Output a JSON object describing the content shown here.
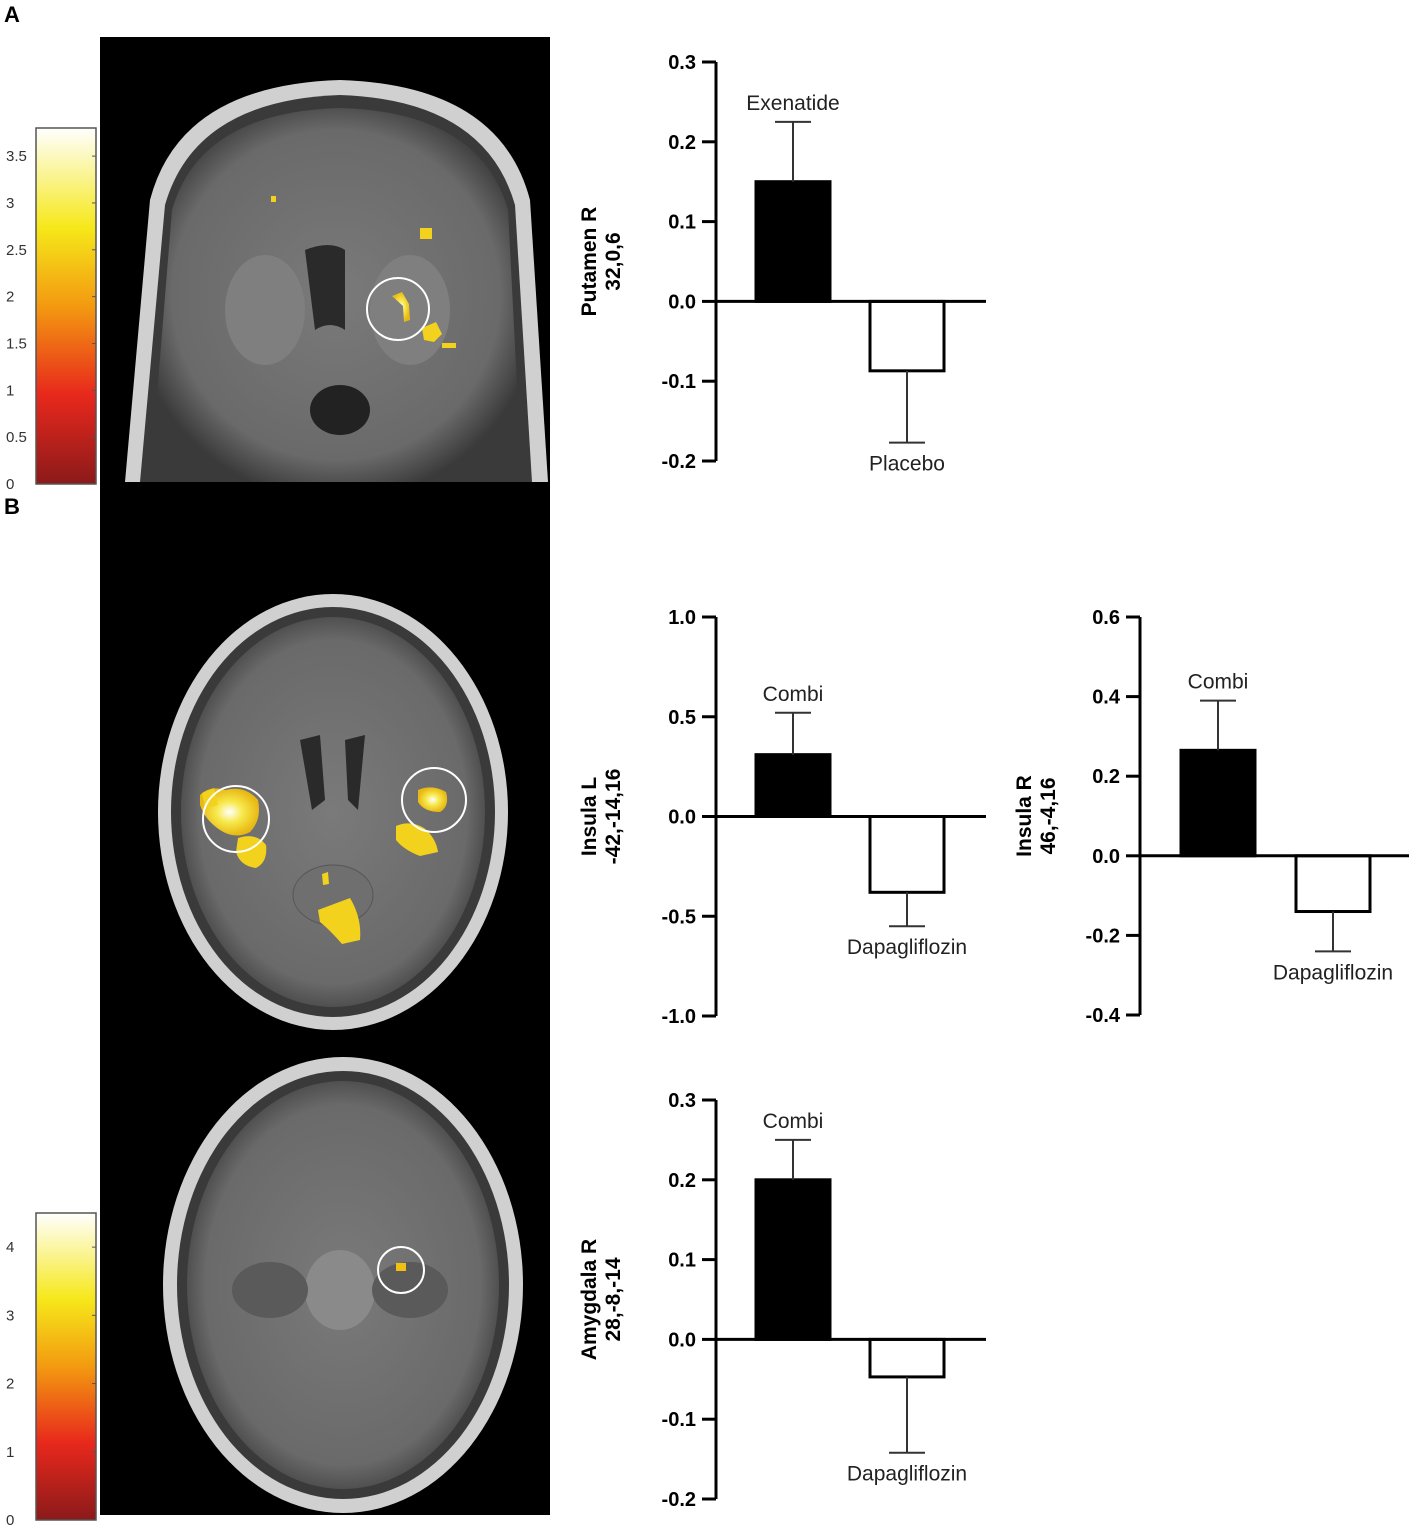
{
  "panels": {
    "a": "A",
    "b": "B"
  },
  "colorbars": [
    {
      "ticks": [
        "0",
        "0.5",
        "1",
        "1.5",
        "2",
        "2.5",
        "3",
        "3.5"
      ],
      "min": 0,
      "max": 3.8
    },
    {
      "ticks": [
        "0",
        "1",
        "2",
        "3",
        "4"
      ],
      "min": 0,
      "max": 4.5
    }
  ],
  "colors": {
    "bar_filled": "#000000",
    "bar_open": "#ffffff",
    "blob": "#f2d21c",
    "circle": "#ffffff"
  },
  "chart_data": [
    {
      "type": "bar",
      "ylabel_lines": [
        "Putamen R",
        "32,0,6"
      ],
      "categories": [
        "Exenatide",
        "Placebo"
      ],
      "values": [
        0.15,
        -0.087
      ],
      "errors": [
        0.075,
        0.09
      ],
      "ylim": [
        -0.2,
        0.3
      ],
      "yticks": [
        "-0.2",
        "-0.1",
        "0.0",
        "0.1",
        "0.2",
        "0.3"
      ],
      "tick_values": [
        -0.2,
        -0.1,
        0.0,
        0.1,
        0.2,
        0.3
      ]
    },
    {
      "type": "bar",
      "ylabel_lines": [
        "Insula L",
        "-42,-14,16"
      ],
      "categories": [
        "Combi",
        "Dapagliflozin"
      ],
      "values": [
        0.31,
        -0.38
      ],
      "errors": [
        0.21,
        0.17
      ],
      "ylim": [
        -1.0,
        1.0
      ],
      "yticks": [
        "-1.0",
        "-0.5",
        "0.0",
        "0.5",
        "1.0"
      ],
      "tick_values": [
        -1.0,
        -0.5,
        0.0,
        0.5,
        1.0
      ]
    },
    {
      "type": "bar",
      "ylabel_lines": [
        "Insula R",
        "46,-4,16"
      ],
      "categories": [
        "Combi",
        "Dapagliflozin"
      ],
      "values": [
        0.265,
        -0.14
      ],
      "errors": [
        0.125,
        0.1
      ],
      "ylim": [
        -0.4,
        0.6
      ],
      "yticks": [
        "-0.4",
        "-0.2",
        "0.0",
        "0.2",
        "0.4",
        "0.6"
      ],
      "tick_values": [
        -0.4,
        -0.2,
        0.0,
        0.2,
        0.4,
        0.6
      ]
    },
    {
      "type": "bar",
      "ylabel_lines": [
        "Amygdala R",
        "28,-8,-14"
      ],
      "categories": [
        "Combi",
        "Dapagliflozin"
      ],
      "values": [
        0.2,
        -0.047
      ],
      "errors": [
        0.05,
        0.095
      ],
      "ylim": [
        -0.2,
        0.3
      ],
      "yticks": [
        "-0.2",
        "-0.1",
        "0.0",
        "0.1",
        "0.2",
        "0.3"
      ],
      "tick_values": [
        -0.2,
        -0.1,
        0.0,
        0.1,
        0.2,
        0.3
      ]
    }
  ]
}
